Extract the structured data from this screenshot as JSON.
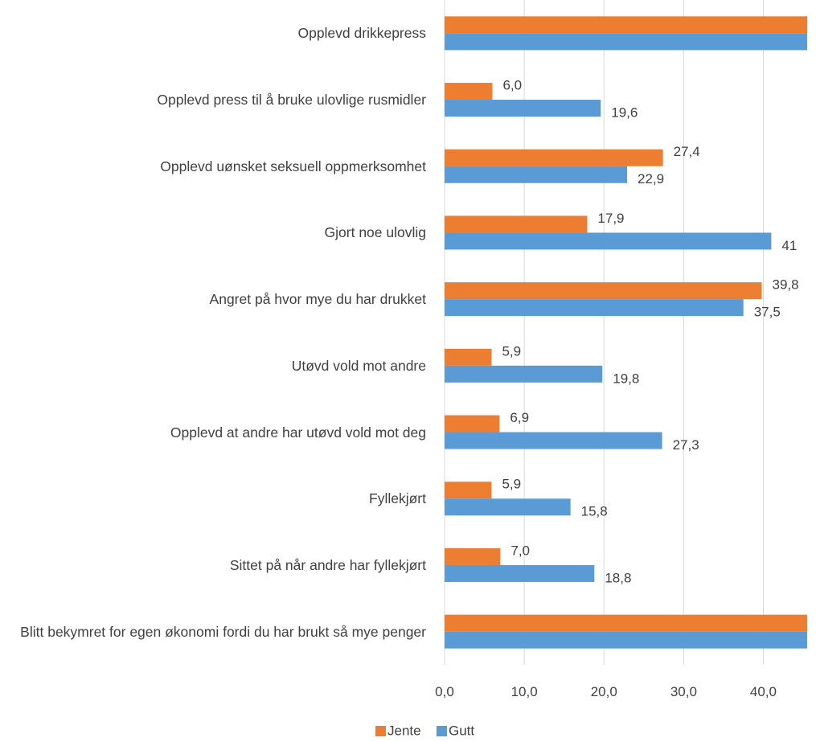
{
  "chart_data": {
    "type": "bar",
    "orientation": "horizontal",
    "categories": [
      "Opplevd drikkepress",
      "Opplevd press til å bruke ulovlige rusmidler",
      "Opplevd uønsket seksuell oppmerksomhet",
      "Gjort noe ulovlig",
      "Angret på hvor mye du har drukket",
      "Utøvd vold mot andre",
      "Opplevd at andre har utøvd vold mot deg",
      "Fyllekjørt",
      "Sittet på når andre har fyllekjørt",
      "Blitt bekymret for egen økonomi fordi du har brukt så mye penger"
    ],
    "series": [
      {
        "name": "Jente",
        "color": "#ed7d31",
        "values": [
          50.2,
          6.0,
          27.4,
          17.9,
          39.8,
          5.9,
          6.9,
          5.9,
          7.0,
          46.9
        ],
        "value_labels": [
          null,
          "6,0",
          "27,4",
          "17,9",
          "39,8",
          "5,9",
          "6,9",
          "5,9",
          "7,0",
          null
        ]
      },
      {
        "name": "Gutt",
        "color": "#5b9bd5",
        "values": [
          49.6,
          19.6,
          22.9,
          41,
          37.5,
          19.8,
          27.3,
          15.8,
          18.8,
          46.4
        ],
        "value_labels": [
          null,
          "19,6",
          "22,9",
          "41",
          "37,5",
          "19,8",
          "27,3",
          "15,8",
          "18,8",
          null
        ]
      }
    ],
    "xlim": [
      0,
      45.5
    ],
    "xticks": [
      {
        "value": 0,
        "label": "0,0"
      },
      {
        "value": 10,
        "label": "10,0"
      },
      {
        "value": 20,
        "label": "20,0"
      },
      {
        "value": 30,
        "label": "30,0"
      },
      {
        "value": 40,
        "label": "40,0"
      }
    ],
    "grid": true,
    "legend": "bottom"
  }
}
